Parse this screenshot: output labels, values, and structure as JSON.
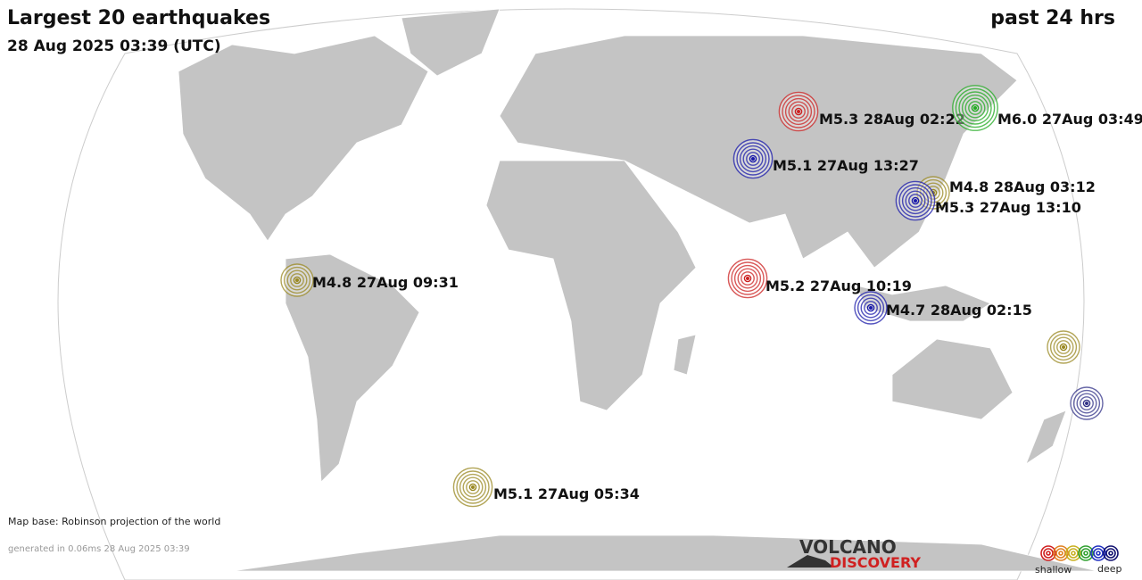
{
  "header": {
    "title": "Largest 20 earthquakes",
    "period": "past 24 hrs",
    "timestamp": "28 Aug 2025 03:39 (UTC)"
  },
  "quakes": [
    {
      "label": "M5.3 28Aug 02:22",
      "color": "#cc2222"
    },
    {
      "label": "M6.0 27Aug 03:49",
      "color": "#22aa22"
    },
    {
      "label": "M5.1 27Aug 13:27",
      "color": "#1a1aaa"
    },
    {
      "label": "M4.8 28Aug 03:12",
      "color": "#998822"
    },
    {
      "label": "M5.3 27Aug 13:10",
      "color": "#1a1aaa"
    },
    {
      "label": "M4.8 27Aug 09:31",
      "color": "#998822"
    },
    {
      "label": "M5.2 27Aug 10:19",
      "color": "#cc2222"
    },
    {
      "label": "M4.7 28Aug 02:15",
      "color": "#1a1aaa"
    },
    {
      "color": "#998822"
    },
    {
      "color": "#333388"
    },
    {
      "label": "M5.1 27Aug 05:34",
      "color": "#998822"
    }
  ],
  "footer": {
    "map_base": "Map base: Robinson projection of the world",
    "generated": "generated in 0.06ms 28 Aug 2025 03:39"
  },
  "logo": {
    "line1": "VOLCANO",
    "line2": "DISCOVERY"
  },
  "legend": {
    "shallow": "shallow",
    "deep": "deep"
  }
}
